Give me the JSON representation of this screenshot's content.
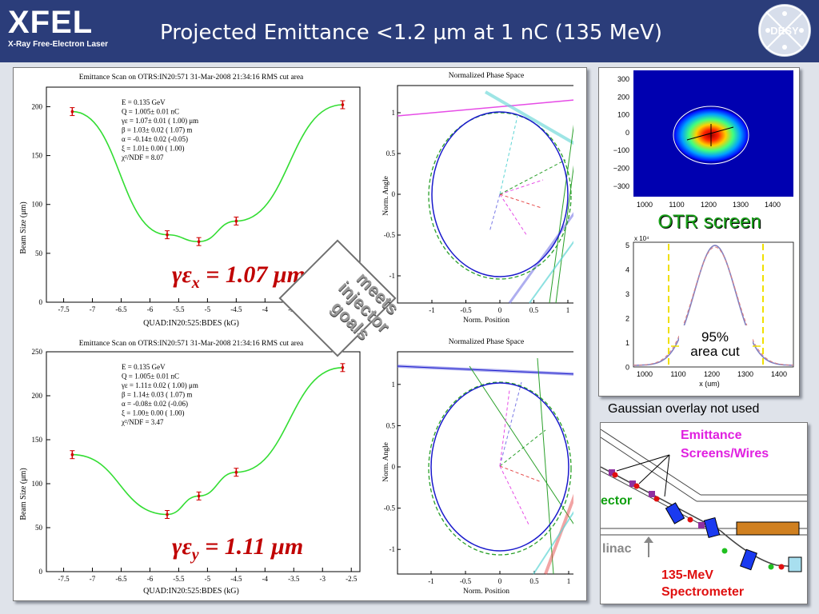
{
  "header": {
    "logo_big": "XFEL",
    "logo_small": "X-Ray Free-Electron Laser",
    "title": "Projected Emittance <1.2 μm at 1 nC (135 MeV)",
    "desy_logo": "DESY"
  },
  "scan_x": {
    "title": "Emittance Scan on OTRS:IN20:571  31-Mar-2008 21:34:16 RMS cut area",
    "ylabel": "Beam Size  (μm)",
    "xlabel": "QUAD:IN20:525:BDES  (kG)",
    "yticks": [
      "0",
      "50",
      "100",
      "150",
      "200"
    ],
    "xticks": [
      "-7.5",
      "-7",
      "-6.5",
      "-6",
      "-5.5",
      "-5",
      "-4.5",
      "-4",
      "-3.5",
      "-3",
      "-2.5"
    ],
    "fit": [
      "E = 0.135 GeV",
      "Q = 1.005± 0.01 nC",
      "γε  =  1.07± 0.01 ( 1.00) μm",
      "β  =  1.03± 0.02 ( 1.07) m",
      "α  =  -0.14± 0.02 (-0.05)",
      "ξ  =  1.01± 0.00 ( 1.00)",
      "χ²/NDF =  8.07"
    ],
    "result": "γεx = 1.07 μm"
  },
  "scan_y": {
    "title": "Emittance Scan on OTRS:IN20:571  31-Mar-2008 21:34:16 RMS cut area",
    "ylabel": "Beam Size  (μm)",
    "xlabel": "QUAD:IN20:525:BDES  (kG)",
    "yticks": [
      "0",
      "50",
      "100",
      "150",
      "200",
      "250"
    ],
    "xticks": [
      "-7.5",
      "-7",
      "-6.5",
      "-6",
      "-5.5",
      "-5",
      "-4.5",
      "-4",
      "-3.5",
      "-3",
      "-2.5"
    ],
    "fit": [
      "E = 0.135 GeV",
      "Q = 1.005± 0.01 nC",
      "γε  =  1.11± 0.02 ( 1.00) μm",
      "β  =  1.14± 0.03 ( 1.07) m",
      "α  =  -0.08± 0.02 (-0.06)",
      "ξ  =  1.00± 0.00 ( 1.00)",
      "χ²/NDF =  3.47"
    ],
    "result": "γεy = 1.11 μm"
  },
  "phase_x": {
    "title": "Normalized Phase Space",
    "xlabel": "Norm. Position",
    "ylabel": "Norm. Angle",
    "xticks": [
      "-1",
      "-0.5",
      "0",
      "0.5",
      "1"
    ],
    "yticks": [
      "1",
      "0.5",
      "0",
      "-0.5",
      "-1"
    ]
  },
  "phase_y": {
    "title": "Normalized Phase Space",
    "xlabel": "Norm. Position",
    "ylabel": "Norm. Angle",
    "xticks": [
      "-1",
      "-0.5",
      "0",
      "0.5",
      "1"
    ],
    "yticks": [
      "1",
      "0.5",
      "0",
      "-0.5",
      "-1"
    ]
  },
  "stamp": [
    "meets",
    "injector",
    "goals"
  ],
  "otr": {
    "yticks": [
      "300",
      "200",
      "100",
      "0",
      "−100",
      "−200",
      "−300"
    ],
    "xticks": [
      "1000",
      "1100",
      "1200",
      "1300",
      "1400"
    ],
    "label": "OTR screen"
  },
  "profile": {
    "exp": "x 10⁴",
    "yticks": [
      "5",
      "4",
      "3",
      "2",
      "1",
      "0"
    ],
    "xticks": [
      "1000",
      "1100",
      "1200",
      "1300",
      "1400"
    ],
    "xlabel": "x  (um)",
    "cut_pct": "95%",
    "cut_label": "area cut"
  },
  "gaussian_note": "Gaussian overlay not used",
  "layout": {
    "emittance_label": "Emittance",
    "screens_label": "Screens/Wires",
    "ector": "ector",
    "linac": "linac",
    "spec1": "135-MeV",
    "spec2": "Spectrometer"
  },
  "chart_data": [
    {
      "type": "scatter",
      "title": "Emittance Scan on OTRS:IN20:571  31-Mar-2008 21:34:16 RMS cut area",
      "xlabel": "QUAD:IN20:525:BDES  (kG)",
      "ylabel": "Beam Size  (μm)",
      "x": [
        -7.35,
        -5.7,
        -5.15,
        -4.5,
        -2.65
      ],
      "y": [
        195,
        69,
        62,
        83,
        202
      ],
      "xlim": [
        -7.8,
        -2.35
      ],
      "ylim": [
        0,
        220
      ]
    },
    {
      "type": "scatter",
      "title": "Emittance Scan on OTRS:IN20:571  31-Mar-2008 21:34:16 RMS cut area",
      "xlabel": "QUAD:IN20:525:BDES  (kG)",
      "ylabel": "Beam Size  (μm)",
      "x": [
        -7.35,
        -5.7,
        -5.15,
        -4.5,
        -2.65
      ],
      "y": [
        133,
        65,
        86,
        113,
        232
      ],
      "xlim": [
        -7.8,
        -2.35
      ],
      "ylim": [
        0,
        250
      ]
    }
  ]
}
